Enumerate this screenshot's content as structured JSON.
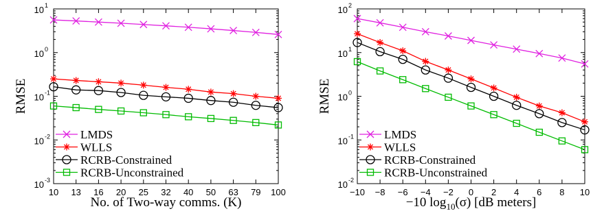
{
  "chart_data": [
    {
      "type": "line",
      "xlabel": "No. of Two-way comms. (K)",
      "ylabel": "RMSE",
      "yscale": "log",
      "ylim": [
        0.001,
        10
      ],
      "categories": [
        "10",
        "13",
        "16",
        "20",
        "25",
        "32",
        "40",
        "50",
        "63",
        "79",
        "100"
      ],
      "legend_position": "bottom-left",
      "grid": false,
      "series": [
        {
          "name": "LMDS",
          "color": "#e020e0",
          "marker": "x",
          "values": [
            5.6,
            5.3,
            5.0,
            4.7,
            4.4,
            4.1,
            3.8,
            3.5,
            3.2,
            2.9,
            2.6
          ]
        },
        {
          "name": "WLLS",
          "color": "#ff0000",
          "marker": "star",
          "values": [
            0.25,
            0.23,
            0.215,
            0.2,
            0.18,
            0.16,
            0.145,
            0.125,
            0.115,
            0.1,
            0.09
          ]
        },
        {
          "name": "RCRB-Constrained",
          "color": "#000000",
          "marker": "circle",
          "values": [
            0.165,
            0.14,
            0.135,
            0.122,
            0.105,
            0.097,
            0.09,
            0.08,
            0.073,
            0.062,
            0.055
          ]
        },
        {
          "name": "RCRB-Unconstrained",
          "color": "#00bb00",
          "marker": "square",
          "values": [
            0.06,
            0.055,
            0.05,
            0.046,
            0.042,
            0.038,
            0.034,
            0.031,
            0.028,
            0.025,
            0.022
          ]
        }
      ]
    },
    {
      "type": "line",
      "xlabel_prefix": "−10 log",
      "xlabel_sub": "10",
      "xlabel_suffix": "(σ) [dB meters]",
      "ylabel": "RMSE",
      "yscale": "log",
      "ylim": [
        0.01,
        100
      ],
      "x": [
        -10,
        -8,
        -6,
        -4,
        -2,
        0,
        2,
        4,
        6,
        8,
        10
      ],
      "xticks": [
        "−10",
        "−8",
        "−6",
        "−4",
        "−2",
        "0",
        "2",
        "4",
        "6",
        "8",
        "10"
      ],
      "legend_position": "bottom-left",
      "grid": false,
      "series": [
        {
          "name": "LMDS",
          "color": "#e020e0",
          "marker": "x",
          "values": [
            60,
            48,
            38,
            30,
            24,
            19,
            15,
            12,
            9.5,
            7.5,
            5.5
          ]
        },
        {
          "name": "WLLS",
          "color": "#ff0000",
          "marker": "star",
          "values": [
            27,
            17,
            11,
            6.3,
            4.0,
            2.5,
            1.55,
            0.95,
            0.6,
            0.42,
            0.26
          ]
        },
        {
          "name": "RCRB-Constrained",
          "color": "#000000",
          "marker": "circle",
          "values": [
            17,
            10.5,
            7,
            4.0,
            2.6,
            1.6,
            1.0,
            0.62,
            0.4,
            0.25,
            0.17
          ]
        },
        {
          "name": "RCRB-Unconstrained",
          "color": "#00bb00",
          "marker": "square",
          "values": [
            6.2,
            3.8,
            2.4,
            1.5,
            0.95,
            0.6,
            0.38,
            0.24,
            0.15,
            0.095,
            0.06
          ]
        }
      ]
    }
  ]
}
